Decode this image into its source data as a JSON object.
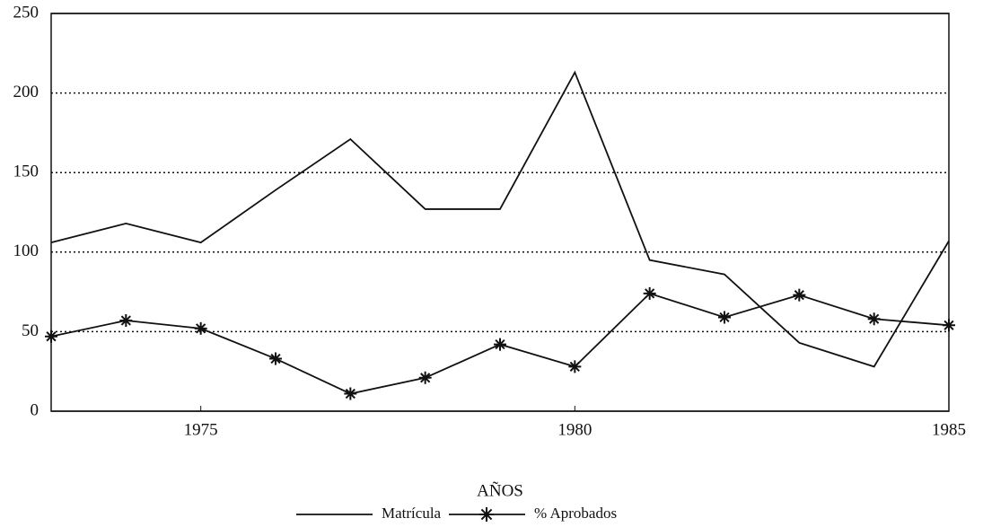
{
  "chart_data": {
    "type": "line",
    "x": [
      1973,
      1974,
      1975,
      1976,
      1977,
      1978,
      1979,
      1980,
      1981,
      1982,
      1983,
      1984,
      1985
    ],
    "xlim": [
      1973,
      1985
    ],
    "xticks": [
      1975,
      1980,
      1985
    ],
    "ylim": [
      0,
      250
    ],
    "yticks": [
      0,
      50,
      100,
      150,
      200,
      250
    ],
    "xlabel": "AÑOS",
    "grid": true,
    "legend": "bottom",
    "series": [
      {
        "name": "Matrícula",
        "color": "#111111",
        "marker": "none",
        "values": [
          106,
          118,
          106,
          139,
          171,
          127,
          127,
          213,
          95,
          86,
          43,
          28,
          107
        ]
      },
      {
        "name": "% Aprobados",
        "color": "#111111",
        "marker": "star",
        "values": [
          47,
          57,
          52,
          33,
          11,
          21,
          42,
          28,
          74,
          59,
          73,
          58,
          54
        ]
      }
    ]
  }
}
